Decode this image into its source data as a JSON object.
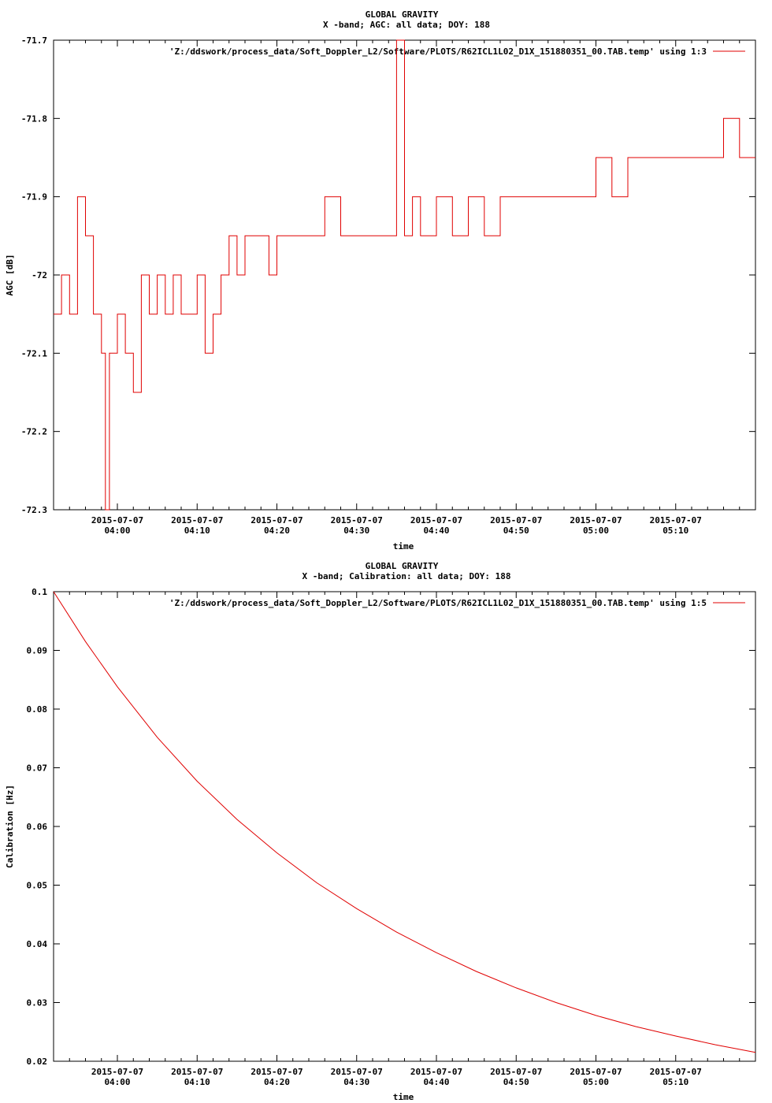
{
  "chart_data": [
    {
      "type": "line",
      "title": "GLOBAL GRAVITY",
      "subtitle": "X -band; AGC: all data; DOY: 188",
      "xlabel": "time",
      "ylabel": "AGC [dB]",
      "ylim": [
        -72.3,
        -71.7
      ],
      "yticks": [
        "-71.7",
        "-71.8",
        "-71.9",
        "-72",
        "-72.1",
        "-72.2",
        "-72.3"
      ],
      "ytick_values": [
        -71.7,
        -71.8,
        -71.9,
        -72.0,
        -72.1,
        -72.2,
        -72.3
      ],
      "xlim_minutes": [
        -8,
        80
      ],
      "xtick_minutes": [
        0,
        10,
        20,
        30,
        40,
        50,
        60,
        70
      ],
      "xtick_dates": [
        "2015-07-07",
        "2015-07-07",
        "2015-07-07",
        "2015-07-07",
        "2015-07-07",
        "2015-07-07",
        "2015-07-07",
        "2015-07-07"
      ],
      "xtick_times": [
        "04:00",
        "04:10",
        "04:20",
        "04:30",
        "04:40",
        "04:50",
        "05:00",
        "05:10"
      ],
      "grid": false,
      "legend_position": "top-right",
      "series": [
        {
          "name": "'Z:/ddswork/process_data/Soft_Doppler_L2/Software/PLOTS/R62ICL1L02_D1X_151880351_00.TAB.temp' using 1:3",
          "color": "#e00000",
          "x": [
            -8,
            -7,
            -6,
            -5,
            -4,
            -3,
            -2,
            -1.5,
            -1,
            0,
            1,
            2,
            3,
            4,
            5,
            6,
            7,
            8,
            9,
            10,
            11,
            12,
            13,
            14,
            15,
            16,
            17,
            18,
            19,
            20,
            22,
            24,
            26,
            28,
            30,
            32,
            34,
            35,
            36,
            37,
            38,
            40,
            42,
            44,
            46,
            48,
            50,
            52,
            54,
            56,
            58,
            60,
            62,
            64,
            66,
            68,
            70,
            72,
            74,
            76,
            78,
            80
          ],
          "y": [
            -72.05,
            -72.0,
            -72.05,
            -71.9,
            -71.95,
            -72.05,
            -72.1,
            -72.3,
            -72.1,
            -72.05,
            -72.1,
            -72.15,
            -72.0,
            -72.05,
            -72.0,
            -72.05,
            -72.0,
            -72.05,
            -72.05,
            -72.0,
            -72.1,
            -72.05,
            -72.0,
            -71.95,
            -72.0,
            -71.95,
            -71.95,
            -71.95,
            -72.0,
            -71.95,
            -71.95,
            -71.95,
            -71.9,
            -71.95,
            -71.95,
            -71.95,
            -71.95,
            -71.7,
            -71.95,
            -71.9,
            -71.95,
            -71.9,
            -71.95,
            -71.9,
            -71.95,
            -71.9,
            -71.9,
            -71.9,
            -71.9,
            -71.9,
            -71.9,
            -71.85,
            -71.9,
            -71.85,
            -71.85,
            -71.85,
            -71.85,
            -71.85,
            -71.85,
            -71.8,
            -71.85,
            -71.85
          ]
        }
      ]
    },
    {
      "type": "line",
      "title": "GLOBAL GRAVITY",
      "subtitle": "X -band; Calibration: all data; DOY: 188",
      "xlabel": "time",
      "ylabel": "Calibration [Hz]",
      "ylim": [
        0.02,
        0.1
      ],
      "yticks": [
        "0.1",
        "0.09",
        "0.08",
        "0.07",
        "0.06",
        "0.05",
        "0.04",
        "0.03",
        "0.02"
      ],
      "ytick_values": [
        0.1,
        0.09,
        0.08,
        0.07,
        0.06,
        0.05,
        0.04,
        0.03,
        0.02
      ],
      "xlim_minutes": [
        -8,
        80
      ],
      "xtick_minutes": [
        0,
        10,
        20,
        30,
        40,
        50,
        60,
        70
      ],
      "xtick_dates": [
        "2015-07-07",
        "2015-07-07",
        "2015-07-07",
        "2015-07-07",
        "2015-07-07",
        "2015-07-07",
        "2015-07-07",
        "2015-07-07"
      ],
      "xtick_times": [
        "04:00",
        "04:10",
        "04:20",
        "04:30",
        "04:40",
        "04:50",
        "05:00",
        "05:10"
      ],
      "grid": false,
      "legend_position": "top-right",
      "series": [
        {
          "name": "'Z:/ddswork/process_data/Soft_Doppler_L2/Software/PLOTS/R62ICL1L02_D1X_151880351_00.TAB.temp' using 1:5",
          "color": "#e00000",
          "x": [
            -8,
            -4,
            0,
            5,
            10,
            15,
            20,
            25,
            30,
            35,
            40,
            45,
            50,
            55,
            60,
            65,
            70,
            75,
            80
          ],
          "y": [
            0.1,
            0.0915,
            0.0838,
            0.0752,
            0.0677,
            0.0612,
            0.0555,
            0.0504,
            0.046,
            0.042,
            0.0385,
            0.0353,
            0.0325,
            0.03,
            0.0278,
            0.0259,
            0.0243,
            0.0228,
            0.0215
          ]
        }
      ]
    }
  ]
}
